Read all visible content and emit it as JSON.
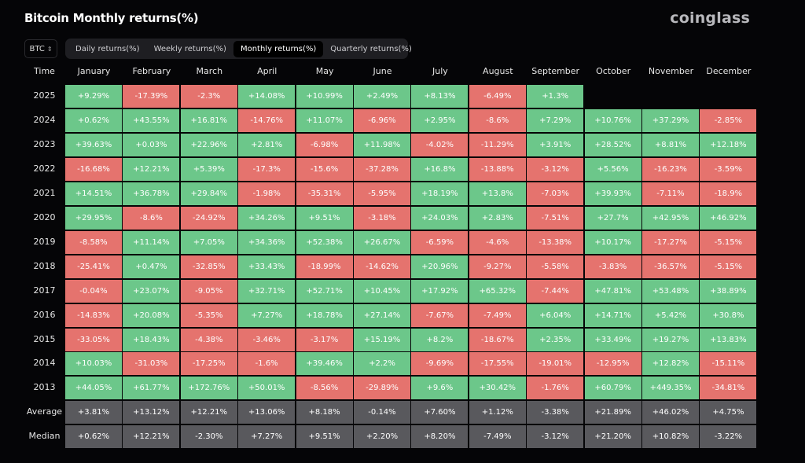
{
  "title": "Bitcoin Monthly returns(%)",
  "logo": "coinglass",
  "coin_select": {
    "value": "BTC",
    "icon": "chevron-updown-icon"
  },
  "tabs": [
    {
      "label": "Daily returns(%)",
      "active": false
    },
    {
      "label": "Weekly returns(%)",
      "active": false
    },
    {
      "label": "Monthly returns(%)",
      "active": true
    },
    {
      "label": "Quarterly returns(%)",
      "active": false
    }
  ],
  "colors": {
    "positive": "#6cc78a",
    "negative": "#e5736e",
    "summary": "#59595d",
    "background": "#050507"
  },
  "chart_data": {
    "type": "heatmap",
    "corner_label": "Time",
    "columns": [
      "January",
      "February",
      "March",
      "April",
      "May",
      "June",
      "July",
      "August",
      "September",
      "October",
      "November",
      "December"
    ],
    "rows": [
      {
        "label": "2025",
        "values": [
          "+9.29%",
          "-17.39%",
          "-2.3%",
          "+14.08%",
          "+10.99%",
          "+2.49%",
          "+8.13%",
          "-6.49%",
          "+1.3%",
          null,
          null,
          null
        ]
      },
      {
        "label": "2024",
        "values": [
          "+0.62%",
          "+43.55%",
          "+16.81%",
          "-14.76%",
          "+11.07%",
          "-6.96%",
          "+2.95%",
          "-8.6%",
          "+7.29%",
          "+10.76%",
          "+37.29%",
          "-2.85%"
        ]
      },
      {
        "label": "2023",
        "values": [
          "+39.63%",
          "+0.03%",
          "+22.96%",
          "+2.81%",
          "-6.98%",
          "+11.98%",
          "-4.02%",
          "-11.29%",
          "+3.91%",
          "+28.52%",
          "+8.81%",
          "+12.18%"
        ]
      },
      {
        "label": "2022",
        "values": [
          "-16.68%",
          "+12.21%",
          "+5.39%",
          "-17.3%",
          "-15.6%",
          "-37.28%",
          "+16.8%",
          "-13.88%",
          "-3.12%",
          "+5.56%",
          "-16.23%",
          "-3.59%"
        ]
      },
      {
        "label": "2021",
        "values": [
          "+14.51%",
          "+36.78%",
          "+29.84%",
          "-1.98%",
          "-35.31%",
          "-5.95%",
          "+18.19%",
          "+13.8%",
          "-7.03%",
          "+39.93%",
          "-7.11%",
          "-18.9%"
        ]
      },
      {
        "label": "2020",
        "values": [
          "+29.95%",
          "-8.6%",
          "-24.92%",
          "+34.26%",
          "+9.51%",
          "-3.18%",
          "+24.03%",
          "+2.83%",
          "-7.51%",
          "+27.7%",
          "+42.95%",
          "+46.92%"
        ]
      },
      {
        "label": "2019",
        "values": [
          "-8.58%",
          "+11.14%",
          "+7.05%",
          "+34.36%",
          "+52.38%",
          "+26.67%",
          "-6.59%",
          "-4.6%",
          "-13.38%",
          "+10.17%",
          "-17.27%",
          "-5.15%"
        ]
      },
      {
        "label": "2018",
        "values": [
          "-25.41%",
          "+0.47%",
          "-32.85%",
          "+33.43%",
          "-18.99%",
          "-14.62%",
          "+20.96%",
          "-9.27%",
          "-5.58%",
          "-3.83%",
          "-36.57%",
          "-5.15%"
        ]
      },
      {
        "label": "2017",
        "values": [
          "-0.04%",
          "+23.07%",
          "-9.05%",
          "+32.71%",
          "+52.71%",
          "+10.45%",
          "+17.92%",
          "+65.32%",
          "-7.44%",
          "+47.81%",
          "+53.48%",
          "+38.89%"
        ]
      },
      {
        "label": "2016",
        "values": [
          "-14.83%",
          "+20.08%",
          "-5.35%",
          "+7.27%",
          "+18.78%",
          "+27.14%",
          "-7.67%",
          "-7.49%",
          "+6.04%",
          "+14.71%",
          "+5.42%",
          "+30.8%"
        ]
      },
      {
        "label": "2015",
        "values": [
          "-33.05%",
          "+18.43%",
          "-4.38%",
          "-3.46%",
          "-3.17%",
          "+15.19%",
          "+8.2%",
          "-18.67%",
          "+2.35%",
          "+33.49%",
          "+19.27%",
          "+13.83%"
        ]
      },
      {
        "label": "2014",
        "values": [
          "+10.03%",
          "-31.03%",
          "-17.25%",
          "-1.6%",
          "+39.46%",
          "+2.2%",
          "-9.69%",
          "-17.55%",
          "-19.01%",
          "-12.95%",
          "+12.82%",
          "-15.11%"
        ]
      },
      {
        "label": "2013",
        "values": [
          "+44.05%",
          "+61.77%",
          "+172.76%",
          "+50.01%",
          "-8.56%",
          "-29.89%",
          "+9.6%",
          "+30.42%",
          "-1.76%",
          "+60.79%",
          "+449.35%",
          "-34.81%"
        ]
      }
    ],
    "summary_rows": [
      {
        "label": "Average",
        "values": [
          "+3.81%",
          "+13.12%",
          "+12.21%",
          "+13.06%",
          "+8.18%",
          "-0.14%",
          "+7.60%",
          "+1.12%",
          "-3.38%",
          "+21.89%",
          "+46.02%",
          "+4.75%"
        ]
      },
      {
        "label": "Median",
        "values": [
          "+0.62%",
          "+12.21%",
          "-2.30%",
          "+7.27%",
          "+9.51%",
          "+2.20%",
          "+8.20%",
          "-7.49%",
          "-3.12%",
          "+21.20%",
          "+10.82%",
          "-3.22%"
        ]
      }
    ]
  }
}
